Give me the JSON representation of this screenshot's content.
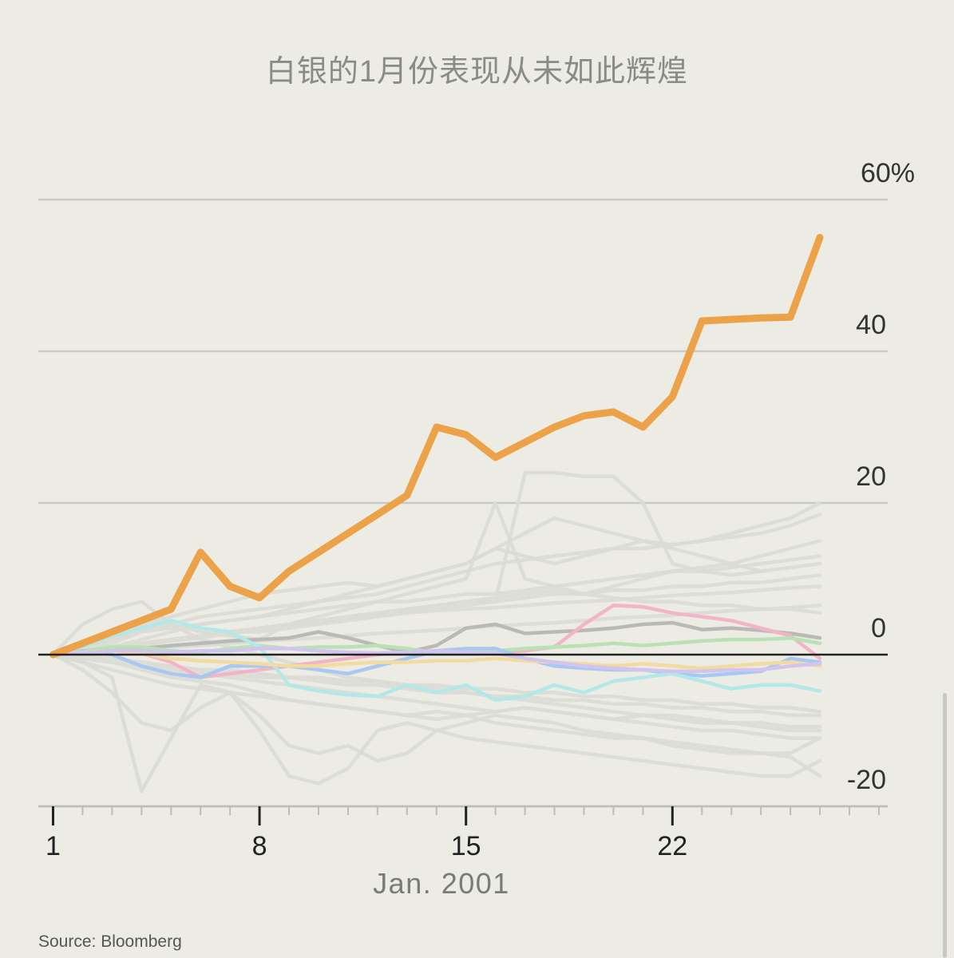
{
  "chart_data": {
    "type": "line",
    "title": "白银的1月份表现从未如此辉煌",
    "xlabel": "Jan. 2001",
    "ylabel": "",
    "x": [
      1,
      2,
      3,
      4,
      5,
      6,
      7,
      8,
      9,
      10,
      11,
      12,
      13,
      14,
      15,
      16,
      17,
      18,
      19,
      20,
      21,
      22,
      23,
      24,
      25,
      26,
      27
    ],
    "xticks": [
      1,
      8,
      15,
      22
    ],
    "xtick_labels": [
      "1",
      "8",
      "15",
      "22"
    ],
    "xlim": [
      0.5,
      29.3
    ],
    "ylim": [
      -20,
      60
    ],
    "yticks": [
      -20,
      0,
      20,
      40,
      60
    ],
    "ytick_labels": [
      "-20",
      "0",
      "20",
      "40",
      "60%"
    ],
    "grid": true,
    "series": [
      {
        "name": "Silver",
        "highlight": true,
        "color": "#eba248",
        "values": [
          0,
          1.5,
          3,
          4.5,
          6,
          13.5,
          9,
          7.5,
          11,
          13.5,
          16,
          18.5,
          21,
          30,
          29,
          26,
          28,
          30,
          31.5,
          32,
          30,
          34,
          44,
          44.2,
          44.4,
          44.5,
          55
        ]
      },
      {
        "name": "gray-dark",
        "color": "#b9b9b5",
        "values": [
          0,
          0.3,
          0.5,
          0.8,
          1.2,
          1.5,
          1.8,
          2,
          2.2,
          3,
          2.2,
          1.2,
          0.3,
          1.2,
          3.5,
          4,
          2.8,
          3,
          3.2,
          3.5,
          4,
          4.2,
          3.3,
          3.5,
          3.2,
          2.8,
          2.2
        ]
      },
      {
        "name": "pink",
        "color": "#f2b5c8",
        "values": [
          0,
          0.3,
          0.5,
          0.2,
          -1,
          -3,
          -2.5,
          -2,
          -1.5,
          -1,
          -0.5,
          0,
          0.3,
          0.5,
          0.5,
          0.2,
          0.5,
          1,
          4,
          6.5,
          6.3,
          5.5,
          5,
          4.5,
          3.5,
          2.5,
          -0.5
        ]
      },
      {
        "name": "green",
        "color": "#b9e2b4",
        "values": [
          0,
          0.5,
          1,
          1,
          0.5,
          0.3,
          0.8,
          1.2,
          0.8,
          1,
          1,
          1.2,
          0.8,
          0.2,
          0.5,
          0.5,
          0.8,
          1,
          1.2,
          1.5,
          1.2,
          1.5,
          1.8,
          2,
          2,
          2.2,
          1.5
        ]
      },
      {
        "name": "blue",
        "color": "#a8c8f2",
        "values": [
          0,
          0.5,
          0,
          -1.5,
          -2.5,
          -3,
          -1.5,
          -1.5,
          -1.5,
          -2,
          -2.5,
          -1.5,
          -0.5,
          0.5,
          0.8,
          0.8,
          -0.5,
          -1.5,
          -1.8,
          -2,
          -2,
          -2.5,
          -2.8,
          -2.5,
          -2.2,
          -0.5,
          -1
        ]
      },
      {
        "name": "cyan",
        "color": "#b2e8e8",
        "values": [
          0,
          1,
          2.5,
          3.5,
          4.5,
          3.5,
          3,
          1,
          -4,
          -4.8,
          -5.3,
          -5.5,
          -4,
          -5,
          -4,
          -6,
          -5.5,
          -4,
          -5,
          -3.5,
          -3,
          -2.5,
          -3.5,
          -4.5,
          -4,
          -4,
          -4.8
        ]
      },
      {
        "name": "yellow",
        "color": "#f2dba0",
        "values": [
          0,
          0.3,
          0.5,
          0.2,
          -0.5,
          -0.8,
          -1,
          -1.2,
          -1.5,
          -1.5,
          -1.2,
          -1,
          -1,
          -0.8,
          -0.8,
          -0.5,
          -0.8,
          -1,
          -1.2,
          -1.5,
          -1.2,
          -1.5,
          -1.8,
          -1.5,
          -1.2,
          -1,
          -1.5
        ]
      },
      {
        "name": "lavender",
        "color": "#d2c4ee",
        "values": [
          0,
          0.2,
          0.5,
          0.5,
          0.3,
          0.5,
          0.5,
          0.8,
          0.8,
          0.5,
          0.3,
          0.2,
          0.3,
          0.5,
          0.3,
          0.2,
          -0.5,
          -1,
          -1.5,
          -1.8,
          -2,
          -2.2,
          -2.2,
          -2,
          -2,
          -1.5,
          -1.2
        ]
      },
      {
        "name": "gray-1",
        "color": "#dcdcd6",
        "values": [
          0,
          -1,
          -3,
          -18,
          -11,
          -4,
          -5,
          -10,
          -16,
          -17,
          -15,
          -10,
          -9,
          -10,
          -11,
          -11.5,
          -12,
          -12.5,
          -13,
          -13.5,
          -14,
          -14.5,
          -15,
          -15.5,
          -16,
          -16,
          -14
        ]
      },
      {
        "name": "gray-2",
        "color": "#dcdcd6",
        "values": [
          0,
          -2,
          -5,
          -9,
          -10,
          -7,
          -5,
          -8,
          -12,
          -13,
          -12,
          -14,
          -13,
          -10,
          -9,
          -8,
          -8.5,
          -9,
          -10,
          -10.5,
          -11,
          -12,
          -12.5,
          -13,
          -13,
          -13.5,
          -16
        ]
      },
      {
        "name": "gray-3",
        "color": "#dcdcd6",
        "values": [
          0,
          -1,
          -2,
          -3,
          -4,
          -4.5,
          -5,
          -5.5,
          -6,
          -6.5,
          -7,
          -7.5,
          -8,
          -7.5,
          -8,
          -9,
          -9.5,
          -10,
          -10.5,
          -11,
          -11,
          -11.5,
          -12,
          -12.5,
          -13,
          -13,
          -11
        ]
      },
      {
        "name": "gray-4",
        "color": "#dcdcd6",
        "values": [
          0,
          1,
          2,
          4,
          5,
          6,
          7,
          8,
          8.5,
          9,
          9.5,
          9,
          10,
          11,
          12,
          14,
          13,
          12,
          13,
          14,
          15,
          14.5,
          15,
          16,
          17,
          18,
          20
        ]
      },
      {
        "name": "gray-5",
        "color": "#dcdcd6",
        "values": [
          0,
          1,
          2,
          3,
          4,
          5,
          5.5,
          6,
          6.5,
          7,
          7.5,
          8,
          9,
          10,
          11,
          12,
          12.5,
          13,
          13.5,
          14,
          14,
          14.5,
          15,
          15.5,
          16,
          17,
          18.5
        ]
      },
      {
        "name": "gray-6",
        "color": "#dcdcd6",
        "values": [
          0,
          0.5,
          1.5,
          3,
          4,
          3,
          2.5,
          2,
          4,
          5,
          6,
          7,
          8,
          9,
          10,
          20,
          10,
          9,
          8,
          9,
          10,
          11,
          11.5,
          12,
          13,
          14,
          15
        ]
      },
      {
        "name": "gray-7",
        "color": "#dcdcd6",
        "values": [
          0,
          0.5,
          1,
          2,
          3,
          4,
          4.5,
          5,
          5.5,
          6,
          6.5,
          7,
          7,
          7.5,
          8,
          8,
          8.5,
          9,
          9.5,
          10,
          10.5,
          11,
          11,
          11.5,
          12,
          12.5,
          13
        ]
      },
      {
        "name": "gray-8",
        "color": "#dcdcd6",
        "values": [
          0,
          0.5,
          1,
          1.5,
          2,
          2.5,
          3,
          3.5,
          4,
          4.5,
          5,
          5.5,
          6,
          6.5,
          7,
          7,
          7.5,
          8,
          8,
          8.5,
          8.5,
          9,
          9,
          9.5,
          9.5,
          10,
          10.5
        ]
      },
      {
        "name": "gray-9",
        "color": "#dcdcd6",
        "values": [
          0,
          0.3,
          0.8,
          1.2,
          1.8,
          2.2,
          2.8,
          3.2,
          3.8,
          4.2,
          4.8,
          5.2,
          5.5,
          5.8,
          6,
          6.2,
          6.5,
          6.8,
          7,
          7.2,
          7.5,
          7.8,
          8,
          8.2,
          8.5,
          8.8,
          9
        ]
      },
      {
        "name": "gray-10",
        "color": "#dcdcd6",
        "values": [
          0,
          -0.5,
          -1,
          -1.5,
          -2,
          -2.5,
          -3,
          -3.5,
          -4,
          -4.5,
          -5,
          -5.5,
          -6,
          -6.5,
          -7,
          -7.5,
          -7,
          -7.5,
          -8,
          -8.5,
          -8,
          -8.5,
          -9,
          -9,
          -9.5,
          -10,
          -10
        ]
      },
      {
        "name": "gray-11",
        "color": "#dcdcd6",
        "values": [
          0,
          -0.3,
          -0.5,
          -1,
          -1.5,
          -2,
          -2.5,
          -3,
          -3,
          -3.5,
          -4,
          -4,
          -4.5,
          -5,
          -5,
          -5.5,
          -5.5,
          -6,
          -6,
          -6.5,
          -6.5,
          -7,
          -7,
          -7.5,
          -7.5,
          -8,
          -8
        ]
      },
      {
        "name": "gray-12",
        "color": "#dcdcd6",
        "values": [
          0,
          4,
          6,
          7,
          4,
          2,
          1,
          0,
          -1,
          -2,
          -3,
          -3.5,
          -4,
          -4.5,
          -5,
          -5.5,
          -6,
          -6.5,
          -7,
          -7.5,
          -8,
          -8,
          -8.5,
          -9,
          -9,
          -9.5,
          -9.5
        ]
      },
      {
        "name": "gray-13",
        "color": "#dcdcd6",
        "values": [
          0,
          0.5,
          1,
          1.5,
          2,
          2.5,
          3,
          3,
          3.5,
          4,
          4.5,
          5,
          5.5,
          6,
          6.5,
          7,
          24,
          24,
          23.5,
          23.5,
          20,
          12,
          11,
          10.5,
          11,
          11.5,
          12
        ]
      },
      {
        "name": "gray-14",
        "color": "#dcdcd6",
        "values": [
          0,
          1,
          2,
          3,
          3.5,
          4,
          4.5,
          5,
          6,
          7,
          8,
          9,
          10,
          11,
          12,
          14,
          16,
          18,
          17,
          16,
          15,
          14,
          13,
          12,
          11,
          null,
          null
        ]
      },
      {
        "name": "gray-15",
        "color": "#dcdcd6",
        "values": [
          0,
          0.5,
          1,
          1.5,
          2,
          2.5,
          3,
          3.5,
          4,
          4.5,
          5,
          5.5,
          6,
          6.5,
          7,
          7.5,
          8,
          8.5,
          8,
          7.5,
          7,
          7,
          6.5,
          6.5,
          6,
          6,
          5.5
        ]
      },
      {
        "name": "gray-16",
        "color": "#dcdcd6",
        "values": [
          0,
          -0.5,
          -1,
          -1.5,
          -1.5,
          -2,
          -2,
          -2.5,
          -3,
          -3,
          -3.5,
          -3.5,
          -4,
          -4,
          -4.5,
          -4.5,
          -5,
          -5,
          -5.5,
          -5.5,
          -6,
          -6,
          -6.5,
          -6.5,
          -7,
          -7,
          -7.5
        ]
      },
      {
        "name": "gray-17",
        "color": "#dcdcd6",
        "values": [
          0,
          -0.5,
          -1,
          -2,
          -3,
          -3.5,
          -4,
          -5,
          -6,
          -6.5,
          -7,
          -7.5,
          -8,
          -8.5,
          -8,
          -7.5,
          -7,
          -7.5,
          -8,
          -8.5,
          -9,
          -9.5,
          -10,
          -10,
          -10.5,
          -11,
          -11
        ]
      },
      {
        "name": "gray-18",
        "color": "#dcdcd6",
        "values": [
          0,
          0.2,
          0.5,
          0.8,
          1,
          1.2,
          1.5,
          1.8,
          2,
          2.2,
          2.5,
          2.8,
          3,
          3.2,
          3.5,
          3.8,
          4,
          4.2,
          4.5,
          4.8,
          5,
          5.2,
          5.5,
          5.8,
          6,
          6.2,
          6.5
        ]
      }
    ]
  },
  "source": "Source: Bloomberg"
}
